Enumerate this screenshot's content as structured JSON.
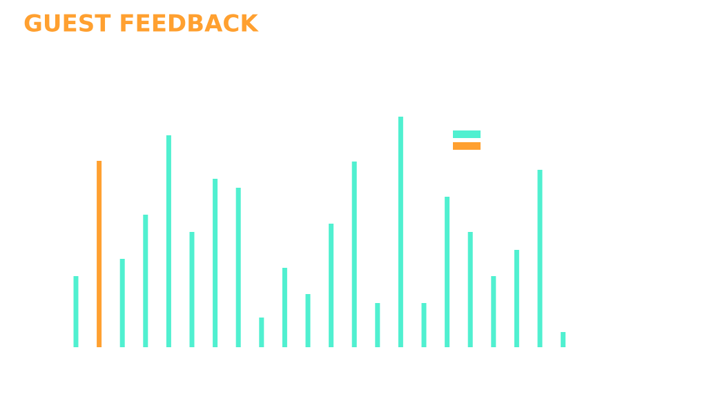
{
  "chart_data": {
    "type": "bar",
    "title": "GUEST FEEDBACK",
    "categories": [
      null,
      null,
      null,
      null,
      null,
      null,
      null,
      null,
      null,
      null,
      null,
      null,
      null,
      null,
      null,
      null,
      null,
      null,
      null,
      null,
      null,
      null
    ],
    "values": [
      103,
      270,
      128,
      192,
      307,
      167,
      244,
      231,
      43,
      115,
      77,
      179,
      269,
      64,
      334,
      64,
      218,
      167,
      103,
      141,
      257,
      22
    ],
    "colors": [
      "#50f0d0",
      "#ffa030",
      "#50f0d0",
      "#50f0d0",
      "#50f0d0",
      "#50f0d0",
      "#50f0d0",
      "#50f0d0",
      "#50f0d0",
      "#50f0d0",
      "#50f0d0",
      "#50f0d0",
      "#50f0d0",
      "#50f0d0",
      "#50f0d0",
      "#50f0d0",
      "#50f0d0",
      "#50f0d0",
      "#50f0d0",
      "#50f0d0",
      "#50f0d0",
      "#50f0d0"
    ],
    "legend_colors": [
      "#50f0d0",
      "#ffa030"
    ],
    "ylim": [
      0,
      340
    ]
  }
}
